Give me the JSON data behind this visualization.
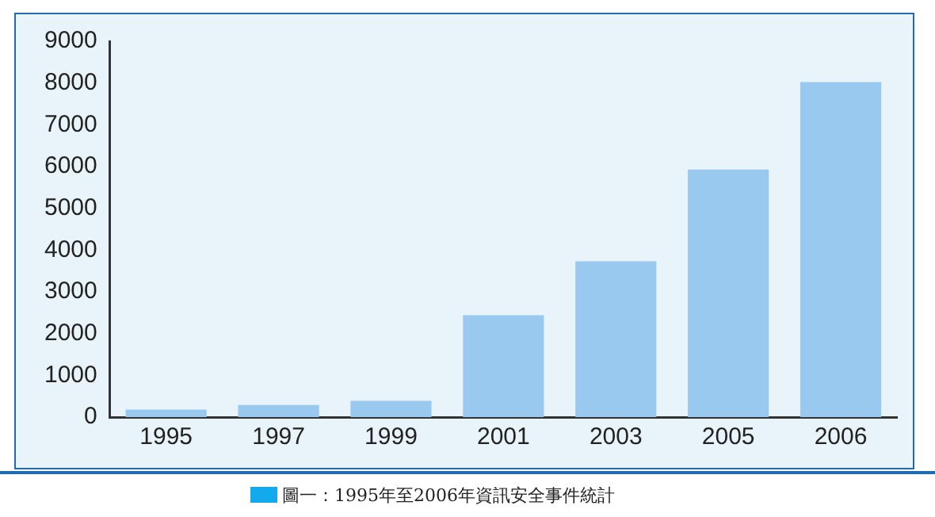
{
  "chart_data": {
    "type": "bar",
    "categories": [
      "1995",
      "1997",
      "1999",
      "2001",
      "2003",
      "2005",
      "2006"
    ],
    "values": [
      180,
      290,
      390,
      2440,
      3730,
      5930,
      8020
    ],
    "color": "#99c9ee",
    "ylim": [
      0,
      9000
    ],
    "yticks": [
      0,
      1000,
      2000,
      3000,
      4000,
      5000,
      6000,
      7000,
      8000,
      9000
    ],
    "grid": false,
    "legend": false,
    "annotations": [
      "圖一：1995年至2006年資訊安全事件統計"
    ]
  }
}
